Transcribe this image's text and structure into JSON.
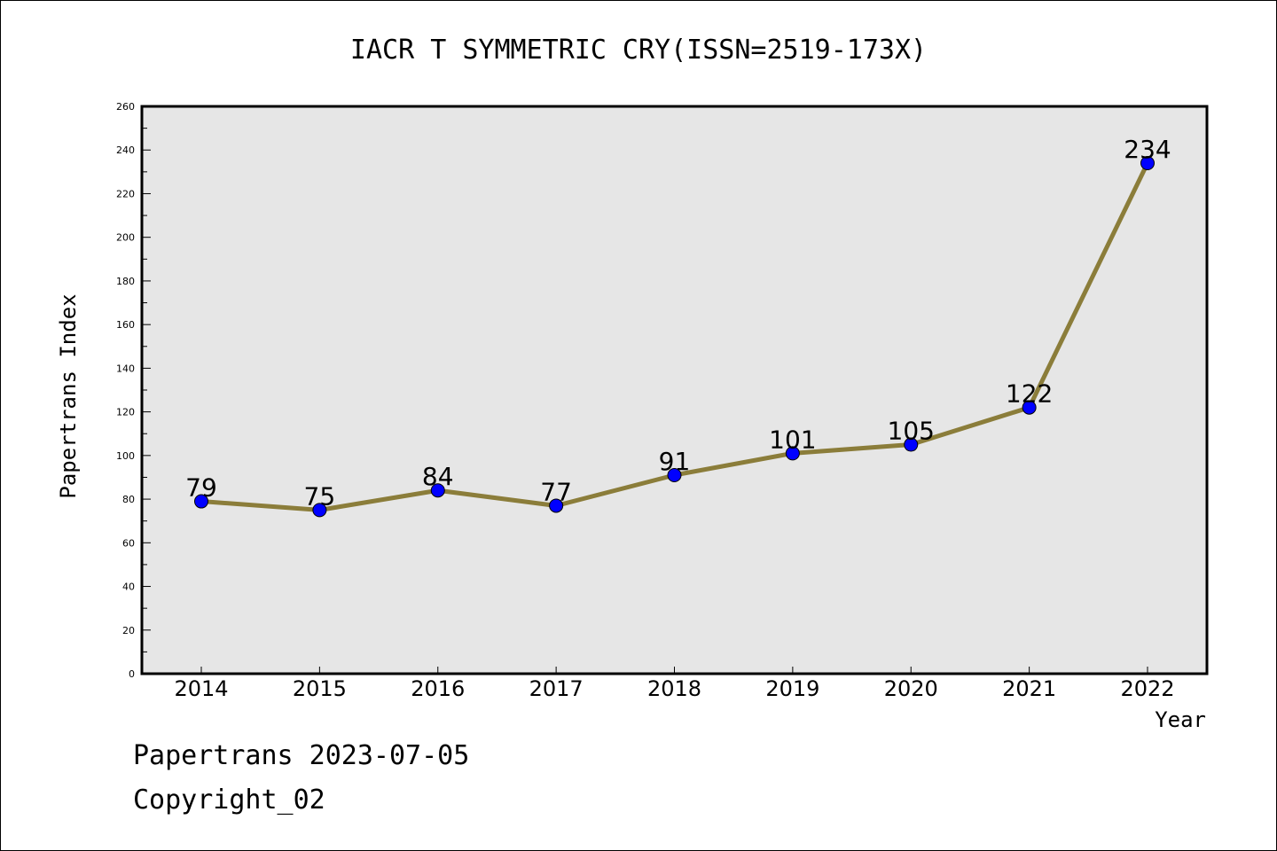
{
  "chart_data": {
    "type": "line",
    "title": "IACR T SYMMETRIC CRY(ISSN=2519-173X)",
    "xlabel": "Year",
    "ylabel": "Papertrans Index",
    "x": [
      "2014",
      "2015",
      "2016",
      "2017",
      "2018",
      "2019",
      "2020",
      "2021",
      "2022"
    ],
    "values": [
      79,
      75,
      84,
      77,
      91,
      101,
      105,
      122,
      234
    ],
    "data_labels": [
      "79",
      "75",
      "84",
      "77",
      "91",
      "101",
      "105",
      "122",
      "234"
    ],
    "ylim": [
      0,
      260
    ],
    "yticks": [
      "0",
      "20",
      "40",
      "60",
      "80",
      "100",
      "120",
      "140",
      "160",
      "180",
      "200",
      "220",
      "240",
      "260"
    ],
    "grid": false,
    "legend": "none",
    "colors": {
      "line": "#8B7D3A",
      "marker": "#0000FF",
      "plot_background": "#E6E6E6"
    }
  },
  "footer": {
    "line1": "Papertrans 2023-07-05",
    "line2": "Copyright_02"
  }
}
